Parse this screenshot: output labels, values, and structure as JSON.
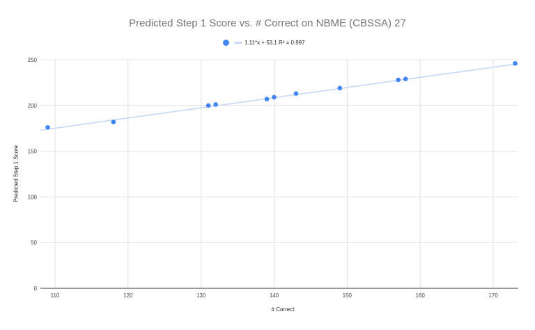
{
  "chart_data": {
    "type": "scatter",
    "title": "Predicted Step 1 Score vs. # Correct on NBME (CBSSA) 27",
    "xlabel": "# Correct",
    "ylabel": "Predicted Step 1 Score",
    "xlim": [
      108,
      173.5
    ],
    "ylim": [
      0,
      250
    ],
    "x_ticks": [
      110,
      120,
      130,
      140,
      150,
      160,
      170
    ],
    "y_ticks": [
      0,
      50,
      100,
      150,
      200,
      250
    ],
    "grid": true,
    "legend_position": "top",
    "series": [
      {
        "name": "Predicted Step 1 Score",
        "color": "#4285f4",
        "points": [
          {
            "x": 109,
            "y": 176
          },
          {
            "x": 118,
            "y": 182
          },
          {
            "x": 131,
            "y": 200
          },
          {
            "x": 132,
            "y": 201
          },
          {
            "x": 139,
            "y": 207
          },
          {
            "x": 140,
            "y": 209
          },
          {
            "x": 143,
            "y": 213
          },
          {
            "x": 149,
            "y": 219
          },
          {
            "x": 157,
            "y": 228
          },
          {
            "x": 158,
            "y": 229
          },
          {
            "x": 173,
            "y": 246
          }
        ]
      }
    ],
    "trendline": {
      "label": "1.11*x + 53.1 R² = 0.997",
      "slope": 1.11,
      "intercept": 53.1,
      "r_squared": 0.997,
      "color": "#c6d8f7"
    }
  },
  "legend": {
    "trend_label": "1.11*x + 53.1 R² = 0.997"
  }
}
